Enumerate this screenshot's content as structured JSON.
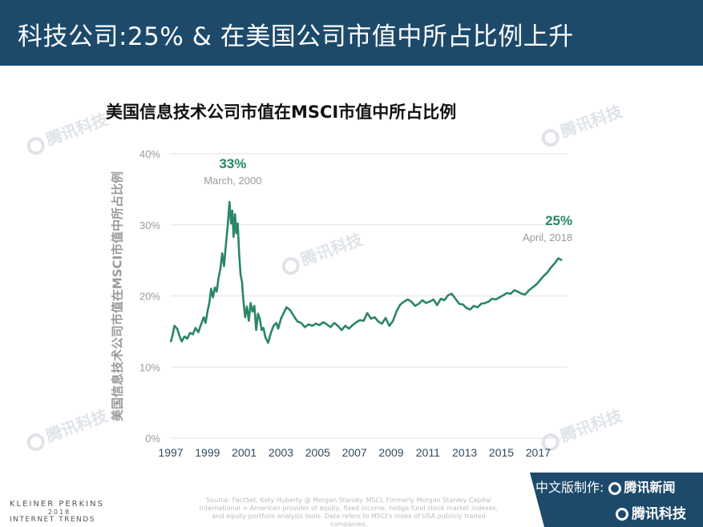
{
  "header": {
    "title": "科技公司:25% & 在美国公司市值中所占比例上升"
  },
  "watermark": {
    "text": "腾讯科技"
  },
  "chart_data": {
    "type": "line",
    "title": "美国信息技术公司市值在MSCI市值中所占比例",
    "ylabel": "美国信息技术公司市值在MSCI市值中所占比例",
    "xlabel": "",
    "ylim": [
      0,
      40
    ],
    "y_ticks": [
      "0%",
      "10%",
      "20%",
      "30%",
      "40%"
    ],
    "y_tick_values": [
      0,
      10,
      20,
      30,
      40
    ],
    "x_ticks": [
      "1997",
      "1999",
      "2001",
      "2003",
      "2005",
      "2007",
      "2009",
      "2011",
      "2013",
      "2015",
      "2017"
    ],
    "x_tick_values": [
      1997,
      1999,
      2001,
      2003,
      2005,
      2007,
      2009,
      2011,
      2013,
      2015,
      2017
    ],
    "xlim": [
      1997,
      2018.6
    ],
    "grid": true,
    "color": "#2a8569",
    "annotations": [
      {
        "value": "33%",
        "label": "March, 2000",
        "x": 2000.2,
        "y": 33
      },
      {
        "value": "25%",
        "label": "April, 2018",
        "x": 2018.3,
        "y": 25
      }
    ],
    "series": [
      {
        "x": [
          1997.0,
          1997.1,
          1997.2,
          1997.35,
          1997.5,
          1997.6,
          1997.75,
          1997.9,
          1998.05,
          1998.2,
          1998.35,
          1998.5,
          1998.65,
          1998.8,
          1998.9,
          1999.0,
          1999.1,
          1999.2,
          1999.3,
          1999.4,
          1999.5,
          1999.6,
          1999.7,
          1999.8,
          1999.9,
          2000.0,
          2000.1,
          2000.2,
          2000.28,
          2000.35,
          2000.42,
          2000.5,
          2000.57,
          2000.65,
          2000.72,
          2000.8,
          2000.88,
          2000.95,
          2001.05,
          2001.15,
          2001.25,
          2001.35,
          2001.45,
          2001.55,
          2001.65,
          2001.75,
          2001.85,
          2001.95,
          2002.05,
          2002.15,
          2002.3,
          2002.45,
          2002.6,
          2002.75,
          2002.85,
          2003.0,
          2003.15,
          2003.3,
          2003.5,
          2003.7,
          2003.9,
          2004.1,
          2004.3,
          2004.5,
          2004.7,
          2004.9,
          2005.1,
          2005.3,
          2005.5,
          2005.7,
          2005.9,
          2006.1,
          2006.3,
          2006.5,
          2006.7,
          2006.9,
          2007.1,
          2007.3,
          2007.5,
          2007.7,
          2007.9,
          2008.1,
          2008.3,
          2008.5,
          2008.7,
          2008.9,
          2009.1,
          2009.3,
          2009.5,
          2009.7,
          2009.9,
          2010.1,
          2010.3,
          2010.5,
          2010.7,
          2010.9,
          2011.1,
          2011.3,
          2011.5,
          2011.7,
          2011.9,
          2012.1,
          2012.3,
          2012.5,
          2012.7,
          2012.9,
          2013.1,
          2013.3,
          2013.5,
          2013.7,
          2013.9,
          2014.1,
          2014.3,
          2014.5,
          2014.7,
          2014.9,
          2015.1,
          2015.3,
          2015.5,
          2015.7,
          2015.9,
          2016.1,
          2016.3,
          2016.5,
          2016.7,
          2016.9,
          2017.1,
          2017.3,
          2017.5,
          2017.7,
          2017.9,
          2018.1,
          2018.3
        ],
        "y": [
          13.5,
          14.5,
          15.8,
          15.4,
          14.2,
          13.6,
          14.3,
          14.0,
          14.8,
          14.6,
          15.5,
          14.9,
          16.0,
          17.0,
          16.2,
          17.8,
          19.0,
          21.0,
          19.8,
          21.2,
          20.6,
          22.5,
          23.8,
          26.0,
          24.2,
          27.2,
          29.8,
          33.2,
          30.2,
          32.0,
          28.3,
          31.5,
          28.8,
          30.2,
          26.0,
          23.0,
          22.0,
          19.5,
          17.0,
          18.5,
          16.5,
          19.0,
          17.8,
          18.6,
          15.2,
          17.5,
          16.8,
          15.2,
          15.5,
          14.2,
          13.4,
          14.8,
          15.8,
          16.2,
          15.4,
          16.8,
          17.6,
          18.4,
          18.0,
          17.2,
          16.4,
          16.2,
          15.6,
          16.0,
          15.8,
          16.1,
          15.9,
          16.3,
          16.0,
          15.6,
          16.2,
          15.8,
          15.2,
          15.8,
          15.4,
          15.9,
          16.3,
          16.6,
          16.5,
          17.6,
          16.8,
          17.0,
          16.4,
          16.1,
          16.9,
          15.8,
          16.5,
          17.9,
          18.8,
          19.2,
          19.5,
          19.2,
          18.6,
          18.9,
          19.4,
          19.0,
          19.2,
          19.5,
          18.7,
          19.6,
          19.4,
          20.1,
          20.3,
          19.6,
          18.9,
          18.8,
          18.3,
          18.1,
          18.6,
          18.4,
          18.9,
          19.0,
          19.2,
          19.6,
          19.5,
          19.8,
          20.1,
          20.4,
          20.3,
          20.8,
          20.6,
          20.3,
          20.2,
          20.8,
          21.2,
          21.6,
          22.2,
          22.8,
          23.3,
          24.0,
          24.6,
          25.3,
          25.0
        ]
      }
    ]
  },
  "footer": {
    "logo_line1": "KLEINER PERKINS",
    "logo_line2": "2018",
    "logo_line3": "INTERNET TRENDS",
    "source": "Source: FactSet, Katy Huberty @ Morgan Stanley. MSCI, Formerly Morgan Stanley Capital International = American provider of equity, fixed income, hedge fund stock market indexes, and equity portfolio analysis tools. Data refers to MSCI's index of USA publicly traded companies.",
    "credit_label": "中文版制作:",
    "credit_brand1": "腾讯新闻",
    "credit_brand2": "腾讯科技"
  }
}
